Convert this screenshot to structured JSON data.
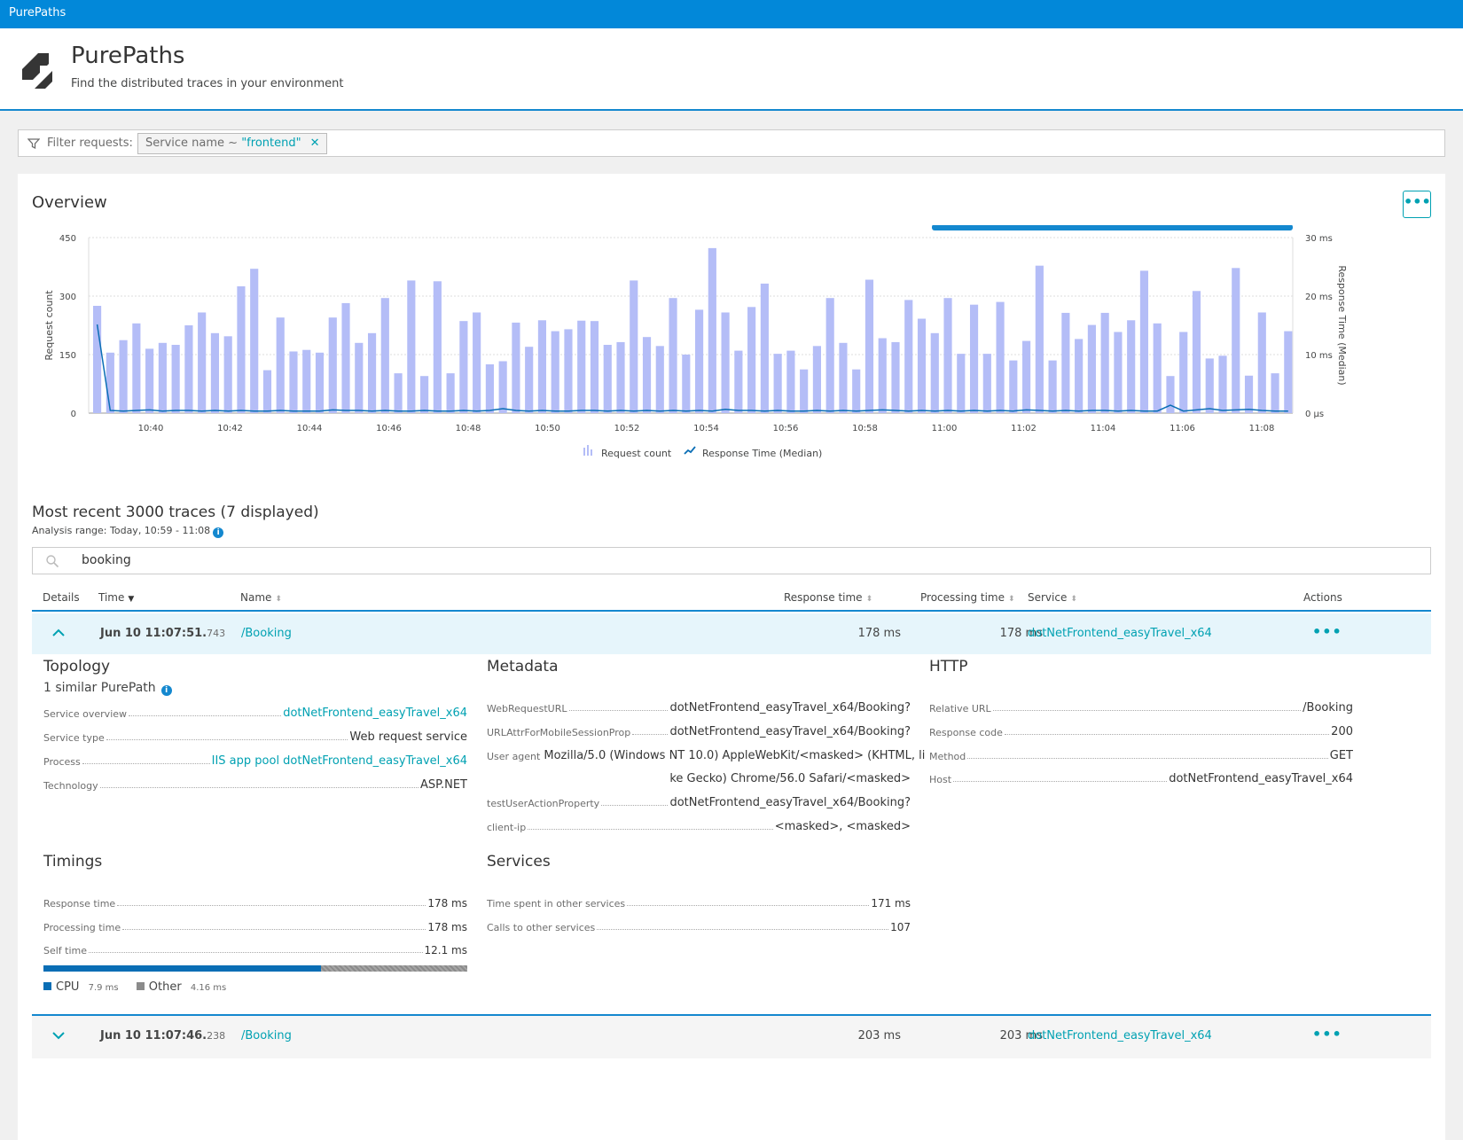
{
  "topbar": {
    "title": "PurePaths"
  },
  "header": {
    "title": "PurePaths",
    "subtitle": "Find the distributed traces in your environment"
  },
  "filter": {
    "label": "Filter requests:",
    "chip_key": "Service name ~ ",
    "chip_value": "\"frontend\""
  },
  "overview": {
    "title": "Overview",
    "menu_label": "•••"
  },
  "chart_data": {
    "type": "bar",
    "x_tick_labels": [
      "10:40",
      "10:42",
      "10:44",
      "10:46",
      "10:48",
      "10:50",
      "10:52",
      "10:54",
      "10:56",
      "10:58",
      "11:00",
      "11:02",
      "11:04",
      "11:06",
      "11:08"
    ],
    "ylabel": "Request count",
    "ylabel_right": "Response Time (Median)",
    "left_ticks": [
      "450",
      "300",
      "150",
      "0"
    ],
    "right_ticks": [
      "30 ms",
      "20 ms",
      "10 ms",
      "0 µs"
    ],
    "ylim": [
      0,
      450
    ],
    "series": [
      {
        "name": "Request count",
        "values": [
          275,
          155,
          187,
          230,
          165,
          180,
          175,
          225,
          258,
          205,
          197,
          325,
          370,
          110,
          245,
          158,
          162,
          155,
          245,
          282,
          180,
          205,
          295,
          102,
          340,
          95,
          338,
          102,
          236,
          258,
          125,
          133,
          232,
          170,
          238,
          210,
          215,
          237,
          236,
          175,
          182,
          340,
          195,
          172,
          295,
          150,
          265,
          423,
          258,
          160,
          272,
          332,
          152,
          160,
          112,
          172,
          295,
          180,
          112,
          342,
          192,
          182,
          290,
          242,
          205,
          295,
          152,
          278,
          152,
          285,
          135,
          185,
          378,
          135,
          257,
          190,
          226,
          257,
          208,
          238,
          365,
          230,
          95,
          208,
          313,
          140,
          147,
          372,
          96,
          258,
          102,
          210
        ]
      },
      {
        "name": "Response Time (Median)",
        "values_ms": [
          15,
          0.3,
          0.2,
          0.3,
          0.4,
          0.2,
          0.3,
          0.3,
          0.2,
          0.3,
          0.2,
          0.3,
          0.2,
          0.2,
          0.3,
          0.2,
          0.2,
          0.2,
          0.4,
          0.3,
          0.3,
          0.2,
          0.3,
          0.2,
          0.2,
          0.3,
          0.2,
          0.2,
          0.3,
          0.2,
          0.3,
          0.6,
          0.3,
          0.2,
          0.3,
          0.2,
          0.2,
          0.3,
          0.3,
          0.2,
          0.3,
          0.2,
          0.3,
          0.2,
          0.3,
          0.2,
          0.3,
          0.2,
          0.5,
          0.3,
          0.3,
          0.2,
          0.3,
          0.2,
          0.2,
          0.3,
          0.2,
          0.3,
          0.2,
          0.3,
          0.4,
          0.3,
          0.2,
          0.3,
          0.2,
          0.3,
          0.2,
          0.3,
          0.2,
          0.3,
          0.2,
          0.4,
          0.3,
          0.2,
          0.3,
          0.2,
          0.3,
          0.3,
          0.2,
          0.3,
          0.2,
          0.2,
          1.2,
          0.2,
          0.4,
          0.6,
          0.3,
          0.4,
          0.5,
          0.3,
          0.2,
          0.2
        ]
      }
    ],
    "legend": [
      "Request count",
      "Response Time (Median)"
    ],
    "colors": {
      "bars": "#b4bdf7",
      "line": "#0a6eb5",
      "progress": "#1488cf"
    }
  },
  "traces": {
    "title": "Most recent 3000 traces (7 displayed)",
    "range": "Analysis range: Today, 10:59 - 11:08",
    "search_value": "booking",
    "columns": {
      "details": "Details",
      "time": "Time",
      "name": "Name",
      "response": "Response time",
      "processing": "Processing time",
      "service": "Service",
      "actions": "Actions"
    },
    "rows": [
      {
        "time": "Jun 10 11:07:51.",
        "ms": "743",
        "name": "/Booking",
        "response": "178 ms",
        "processing": "178 ms",
        "service": "dotNetFrontend_easyTravel_x64",
        "actions": "•••"
      },
      {
        "time": "Jun 10 11:07:46.",
        "ms": "238",
        "name": "/Booking",
        "response": "203 ms",
        "processing": "203 ms",
        "service": "dotNetFrontend_easyTravel_x64",
        "actions": "•••"
      }
    ]
  },
  "details": {
    "topology": {
      "title": "Topology",
      "similar": "1 similar PurePath",
      "items": [
        {
          "k": "Service overview",
          "v": "dotNetFrontend_easyTravel_x64"
        },
        {
          "k": "Service type",
          "v": "Web request service"
        },
        {
          "k": "Process",
          "v": "IIS app pool dotNetFrontend_easyTravel_x64"
        },
        {
          "k": "Technology",
          "v": "ASP.NET"
        }
      ]
    },
    "metadata": {
      "title": "Metadata",
      "items": [
        {
          "k": "WebRequestURL",
          "v": "dotNetFrontend_easyTravel_x64/Booking?"
        },
        {
          "k": "URLAttrForMobileSessionProp",
          "v": "dotNetFrontend_easyTravel_x64/Booking?"
        },
        {
          "k": "User agent",
          "v": "Mozilla/5.0 (Windows NT 10.0) AppleWebKit/<masked> (KHTML, li",
          "v2": "ke Gecko) Chrome/56.0 Safari/<masked>"
        },
        {
          "k": "testUserActionProperty",
          "v": "dotNetFrontend_easyTravel_x64/Booking?"
        },
        {
          "k": "client-ip",
          "v": "<masked>, <masked>"
        }
      ]
    },
    "http": {
      "title": "HTTP",
      "items": [
        {
          "k": "Relative URL",
          "v": "/Booking"
        },
        {
          "k": "Response code",
          "v": "200"
        },
        {
          "k": "Method",
          "v": "GET"
        },
        {
          "k": "Host",
          "v": "dotNetFrontend_easyTravel_x64"
        }
      ]
    },
    "timings": {
      "title": "Timings",
      "items": [
        {
          "k": "Response time",
          "v": "178 ms"
        },
        {
          "k": "Processing time",
          "v": "178 ms"
        },
        {
          "k": "Self time",
          "v": "12.1 ms"
        }
      ],
      "cpu_label": "CPU",
      "cpu_value": "7.9 ms",
      "other_label": "Other",
      "other_value": "4.16 ms",
      "cpu_fraction": 0.655
    },
    "services": {
      "title": "Services",
      "items": [
        {
          "k": "Time spent in other services",
          "v": "171 ms"
        },
        {
          "k": "Calls to other services",
          "v": "107"
        }
      ]
    }
  }
}
